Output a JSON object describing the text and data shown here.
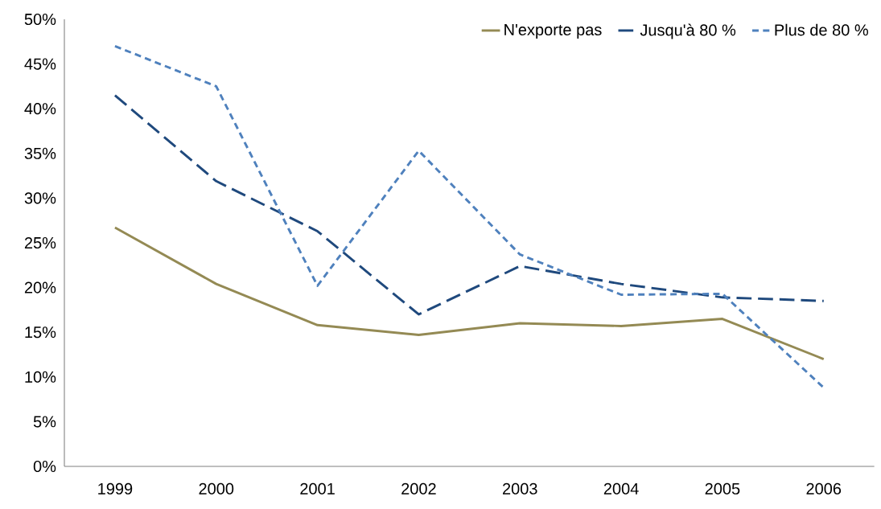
{
  "chart_data": {
    "type": "line",
    "categories": [
      "1999",
      "2000",
      "2001",
      "2002",
      "2003",
      "2004",
      "2005",
      "2006"
    ],
    "series": [
      {
        "name": "N'exporte pas",
        "color": "#948a54",
        "line_style": "solid",
        "values": [
          26.7,
          20.4,
          15.8,
          14.7,
          16.0,
          15.7,
          16.5,
          12.0
        ]
      },
      {
        "name": "Jusqu'à 80 %",
        "color": "#1f497d",
        "line_style": "dashed",
        "values": [
          41.5,
          31.9,
          26.3,
          17.0,
          22.4,
          20.4,
          18.9,
          18.5
        ]
      },
      {
        "name": "Plus de 80 %",
        "color": "#4f81bd",
        "line_style": "dotted",
        "values": [
          47.0,
          42.5,
          20.2,
          35.3,
          23.7,
          19.2,
          19.3,
          8.8
        ]
      }
    ],
    "ylim": [
      0,
      50
    ],
    "yticks": [
      {
        "value": 0,
        "label": "0%"
      },
      {
        "value": 5,
        "label": "5%"
      },
      {
        "value": 10,
        "label": "10%"
      },
      {
        "value": 15,
        "label": "15%"
      },
      {
        "value": 20,
        "label": "20%"
      },
      {
        "value": 25,
        "label": "25%"
      },
      {
        "value": 30,
        "label": "30%"
      },
      {
        "value": 35,
        "label": "35%"
      },
      {
        "value": 40,
        "label": "40%"
      },
      {
        "value": 45,
        "label": "45%"
      },
      {
        "value": 50,
        "label": "50%"
      }
    ],
    "grid": false,
    "legend": "top right",
    "marker": "none"
  }
}
